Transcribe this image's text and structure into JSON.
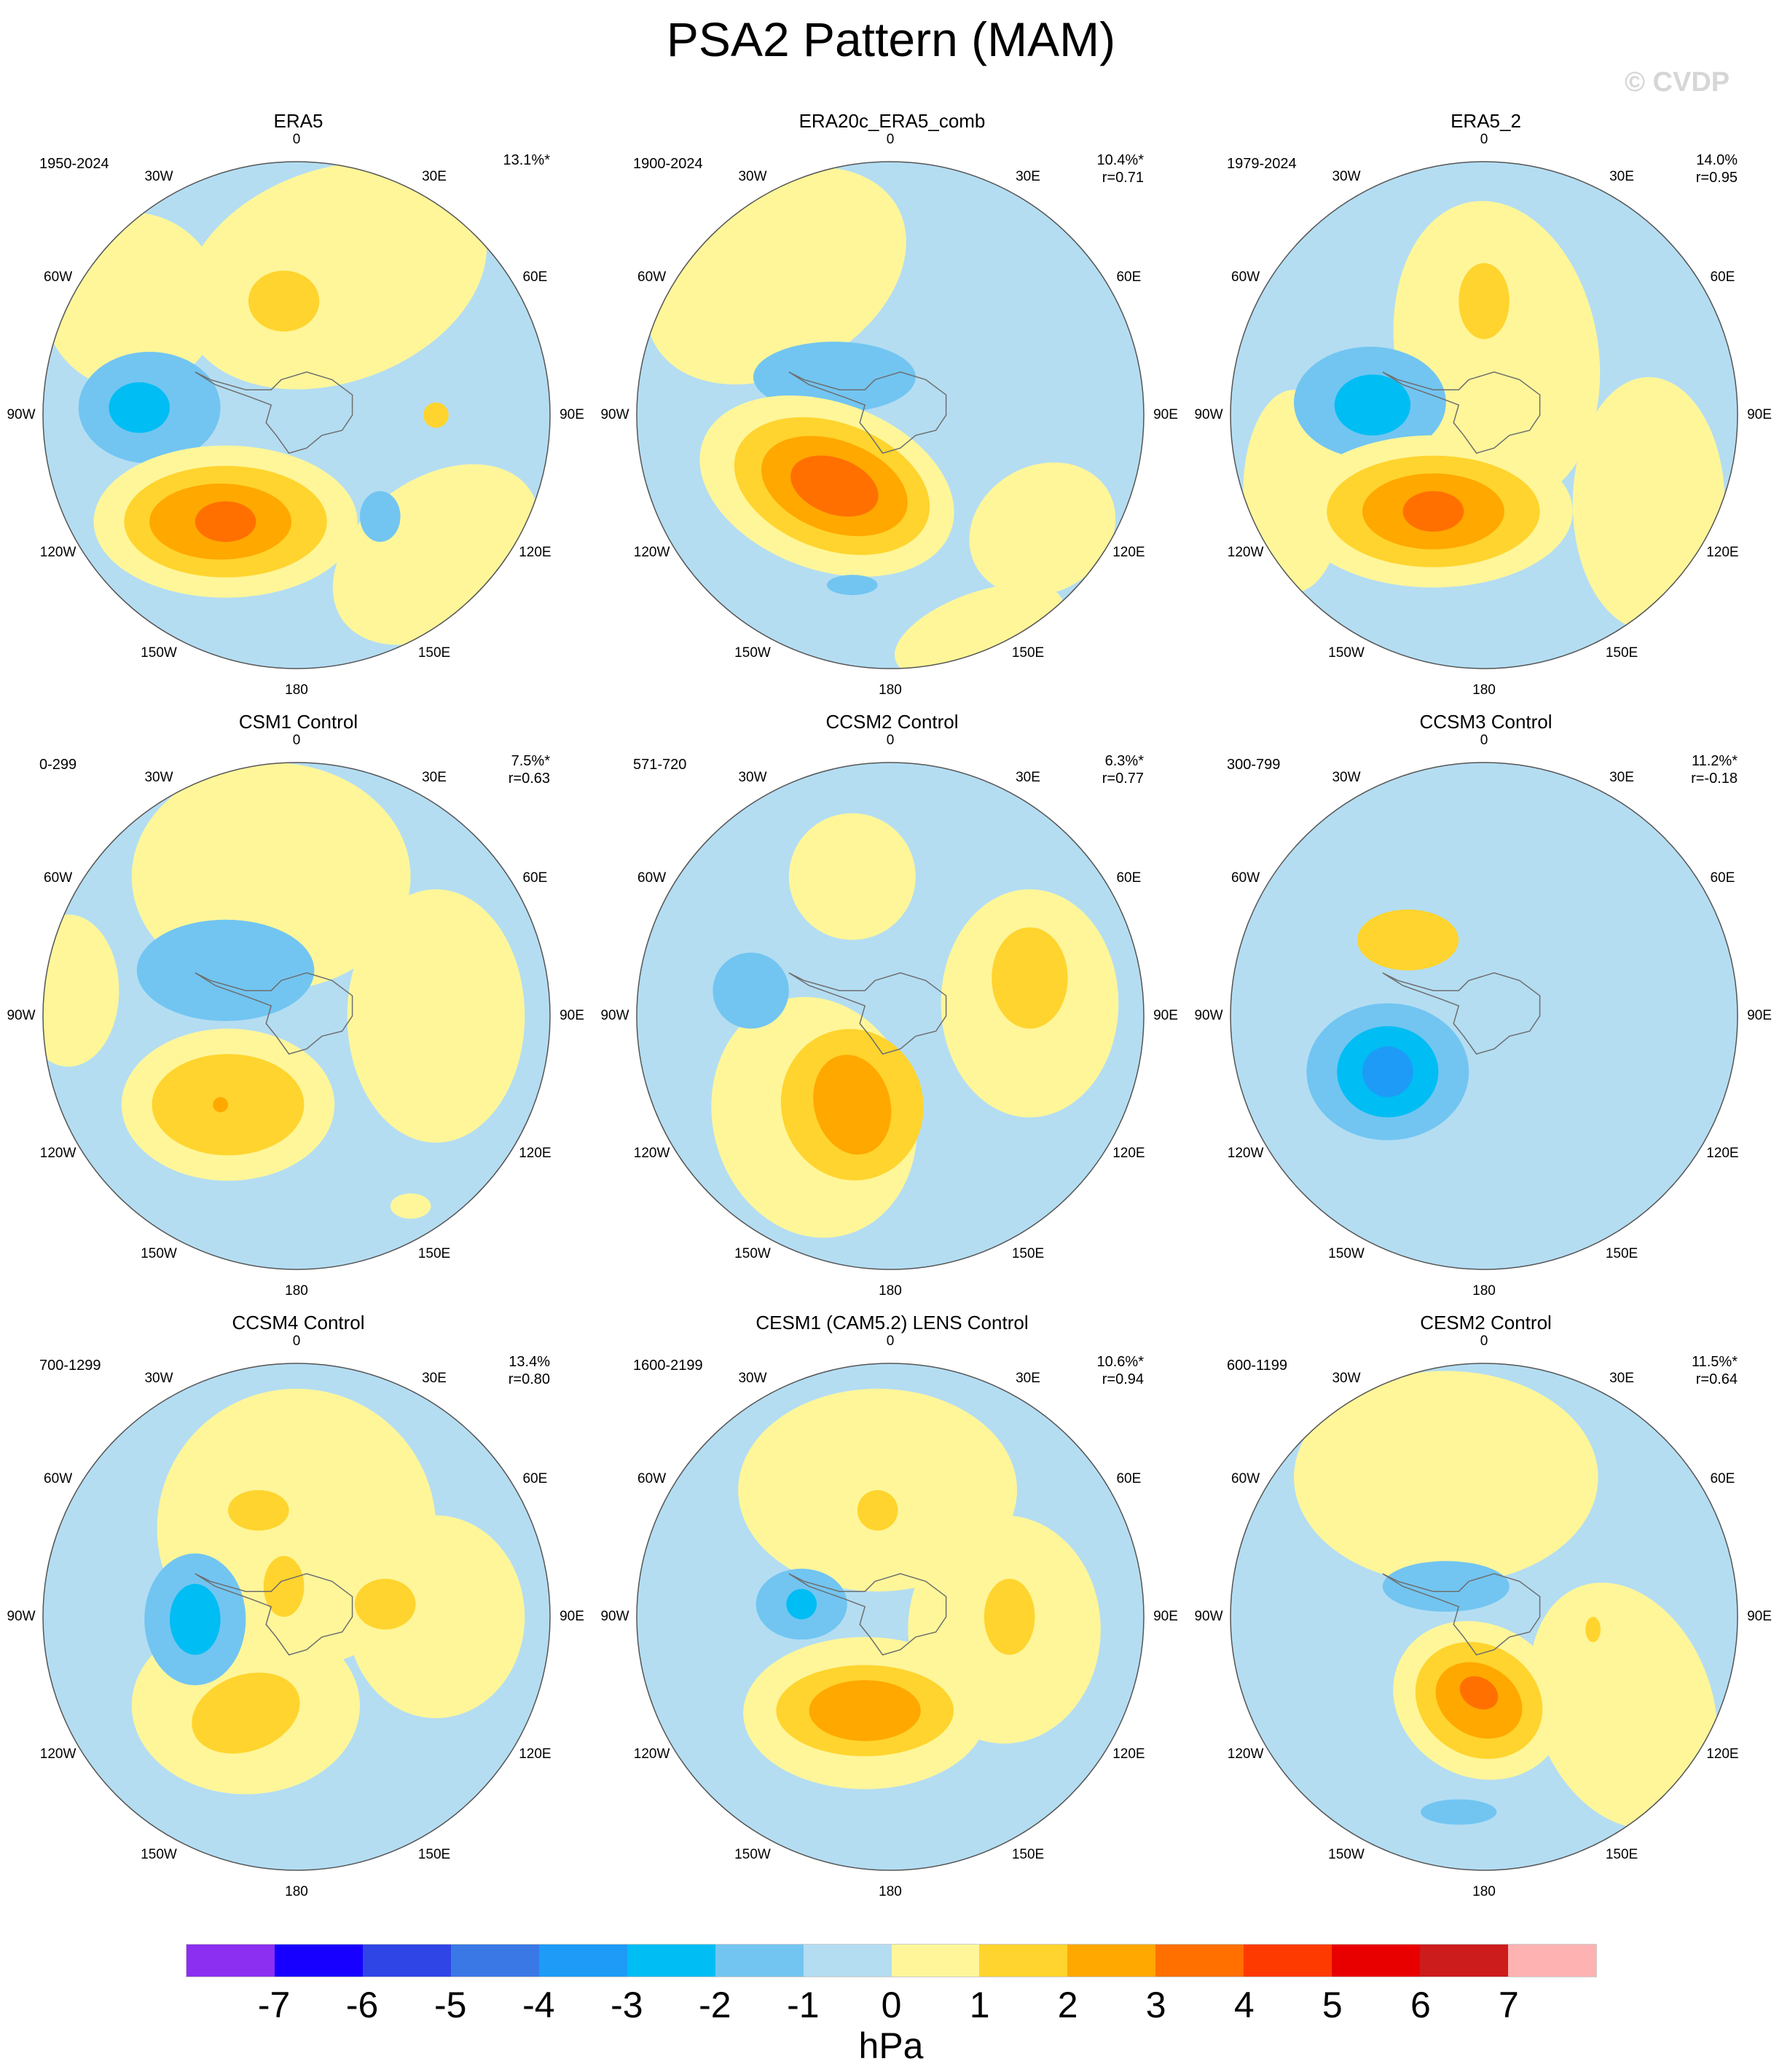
{
  "title": "PSA2 Pattern (MAM)",
  "watermark": "© CVDP",
  "colors": {
    "neg1": "#b4ddf2",
    "neg2": "#72c5f1",
    "neg3": "#00bdf4",
    "neg4": "#1e9bf6",
    "neg5": "#3a78e6",
    "pos1": "#fff69a",
    "pos2": "#ffd42e",
    "pos3": "#ffa800",
    "pos4": "#ff7000",
    "land": "#6e6e6e"
  },
  "lon_labels": [
    "0",
    "30E",
    "60E",
    "90E",
    "120E",
    "150E",
    "180",
    "150W",
    "120W",
    "90W",
    "60W",
    "30W"
  ],
  "panels": [
    {
      "name": "ERA5",
      "years": "1950-2024",
      "pct": "13.1%*",
      "r": ""
    },
    {
      "name": "ERA20c_ERA5_comb",
      "years": "1900-2024",
      "pct": "10.4%*",
      "r": "r=0.71"
    },
    {
      "name": "ERA5_2",
      "years": "1979-2024",
      "pct": "14.0%",
      "r": "r=0.95"
    },
    {
      "name": "CSM1 Control",
      "years": "0-299",
      "pct": "7.5%*",
      "r": "r=0.63"
    },
    {
      "name": "CCSM2 Control",
      "years": "571-720",
      "pct": "6.3%*",
      "r": "r=0.77"
    },
    {
      "name": "CCSM3 Control",
      "years": "300-799",
      "pct": "11.2%*",
      "r": "r=-0.18"
    },
    {
      "name": "CCSM4 Control",
      "years": "700-1299",
      "pct": "13.4%",
      "r": "r=0.80"
    },
    {
      "name": "CESM1 (CAM5.2) LENS Control",
      "years": "1600-2199",
      "pct": "10.6%*",
      "r": "r=0.94"
    },
    {
      "name": "CESM2 Control",
      "years": "600-1199",
      "pct": "11.5%*",
      "r": "r=0.64"
    }
  ],
  "colorbar": {
    "unit": "hPa",
    "colors": [
      "#8c2ff0",
      "#1700ff",
      "#2f45e6",
      "#3a78e6",
      "#1e9bf6",
      "#00bdf4",
      "#72c5f1",
      "#b4ddf2",
      "#fff69a",
      "#ffd42e",
      "#ffa800",
      "#ff7000",
      "#ff3a00",
      "#e80000",
      "#cc1c1c",
      "#ffb2b2"
    ],
    "ticks": [
      "-7",
      "-6",
      "-5",
      "-4",
      "-3",
      "-2",
      "-1",
      "0",
      "1",
      "2",
      "3",
      "4",
      "5",
      "6",
      "7"
    ]
  }
}
